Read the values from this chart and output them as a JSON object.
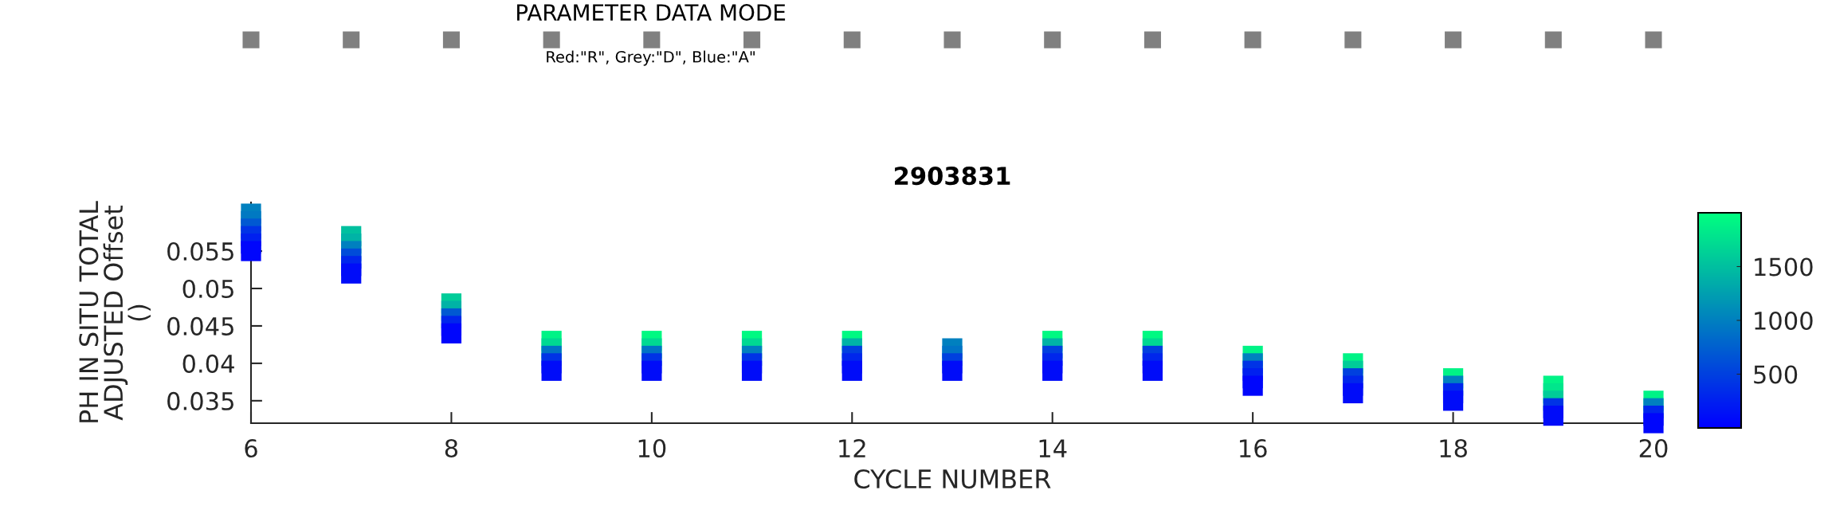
{
  "chart_data": [
    {
      "type": "other",
      "title": "PARAMETER DATA MODE",
      "subtitle": "Red:\"R\", Grey:\"D\", Blue:\"A\""
    },
    {
      "type": "scatter",
      "title": "2903831",
      "xlabel": "CYCLE NUMBER",
      "ylabel": "PH IN SITU TOTAL\nADJUSTED Offset\n()",
      "marker": "square",
      "xlim": [
        6,
        20
      ],
      "ylim": [
        0.032,
        0.0615
      ],
      "xticks": [
        6,
        8,
        10,
        12,
        14,
        16,
        18,
        20
      ],
      "yticks": [
        0.035,
        0.04,
        0.045,
        0.05,
        0.055
      ],
      "clim": [
        0,
        2000
      ],
      "cticks": [
        500,
        1000,
        1500
      ],
      "series": [
        {
          "x": [
            6,
            6,
            6,
            6,
            6,
            6,
            7,
            7,
            7,
            7,
            7,
            7,
            8,
            8,
            8,
            8,
            8,
            9,
            9,
            9,
            9,
            9,
            10,
            10,
            10,
            10,
            10,
            11,
            11,
            11,
            11,
            11,
            12,
            12,
            12,
            12,
            12,
            13,
            13,
            13,
            13,
            14,
            14,
            14,
            14,
            14,
            15,
            15,
            15,
            15,
            15,
            16,
            16,
            16,
            16,
            16,
            17,
            17,
            17,
            17,
            17,
            18,
            18,
            18,
            18,
            19,
            19,
            19,
            19,
            19,
            20,
            20,
            20,
            20
          ],
          "values": [
            0.06,
            0.059,
            0.058,
            0.057,
            0.056,
            0.055,
            0.057,
            0.056,
            0.055,
            0.054,
            0.053,
            0.052,
            0.048,
            0.047,
            0.046,
            0.045,
            0.044,
            0.043,
            0.042,
            0.041,
            0.04,
            0.039,
            0.043,
            0.042,
            0.041,
            0.04,
            0.039,
            0.043,
            0.042,
            0.041,
            0.04,
            0.039,
            0.043,
            0.042,
            0.041,
            0.04,
            0.039,
            0.042,
            0.041,
            0.04,
            0.039,
            0.043,
            0.042,
            0.041,
            0.04,
            0.039,
            0.043,
            0.042,
            0.041,
            0.04,
            0.039,
            0.041,
            0.04,
            0.039,
            0.038,
            0.037,
            0.04,
            0.039,
            0.038,
            0.037,
            0.036,
            0.038,
            0.037,
            0.036,
            0.035,
            0.037,
            0.036,
            0.035,
            0.034,
            0.033,
            0.035,
            0.034,
            0.033,
            0.032
          ],
          "cvalues": [
            1000,
            950,
            700,
            400,
            250,
            50,
            1500,
            1400,
            1000,
            600,
            300,
            100,
            1600,
            1400,
            700,
            300,
            50,
            1900,
            1700,
            900,
            400,
            100,
            1950,
            1700,
            900,
            400,
            100,
            1950,
            1700,
            1000,
            400,
            100,
            1950,
            1400,
            500,
            300,
            100,
            1000,
            900,
            500,
            100,
            1950,
            1400,
            500,
            300,
            100,
            1950,
            1700,
            500,
            300,
            100,
            1900,
            1000,
            400,
            250,
            50,
            1900,
            1600,
            500,
            300,
            100,
            1900,
            1000,
            300,
            100,
            1900,
            1800,
            1600,
            400,
            100,
            1900,
            1000,
            300,
            50
          ]
        }
      ]
    }
  ]
}
